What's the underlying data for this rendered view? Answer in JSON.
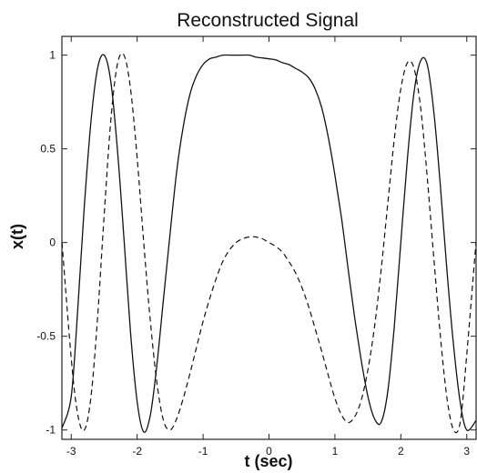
{
  "chart_data": {
    "type": "line",
    "title": "Reconstructed Signal",
    "xlabel": "t (sec)",
    "ylabel": "x(t)",
    "xlim": [
      -3.14159,
      3.14159
    ],
    "ylim": [
      -1.05,
      1.1
    ],
    "x_ticks": [
      -3,
      -2,
      -1,
      0,
      1,
      2,
      3
    ],
    "y_ticks": [
      -1,
      -0.5,
      0,
      0.5,
      1
    ],
    "y_tick_labels": [
      "-1",
      "-0.5",
      "0",
      "0.5",
      "1"
    ],
    "grid": false,
    "series": [
      {
        "style": "solid",
        "color": "#111111",
        "x": [
          -3.14,
          -3.0,
          -2.9,
          -2.8,
          -2.7,
          -2.6,
          -2.5,
          -2.4,
          -2.3,
          -2.2,
          -2.1,
          -2.0,
          -1.9,
          -1.8,
          -1.7,
          -1.6,
          -1.5,
          -1.4,
          -1.3,
          -1.2,
          -1.1,
          -1.0,
          -0.9,
          -0.8,
          -0.7,
          -0.6,
          -0.5,
          -0.4,
          -0.3,
          -0.2,
          -0.1,
          0.0,
          0.1,
          0.2,
          0.3,
          0.4,
          0.5,
          0.6,
          0.7,
          0.8,
          0.9,
          1.0,
          1.1,
          1.2,
          1.3,
          1.4,
          1.5,
          1.6,
          1.7,
          1.8,
          1.9,
          2.0,
          2.1,
          2.2,
          2.3,
          2.4,
          2.5,
          2.6,
          2.7,
          2.8,
          2.9,
          3.0,
          3.14
        ],
        "y": [
          -0.99,
          -0.82,
          -0.35,
          0.2,
          0.65,
          0.93,
          1.0,
          0.86,
          0.5,
          0.02,
          -0.48,
          -0.85,
          -1.01,
          -0.92,
          -0.65,
          -0.3,
          0.05,
          0.38,
          0.62,
          0.79,
          0.89,
          0.95,
          0.98,
          0.99,
          1.0,
          1.0,
          1.0,
          1.0,
          1.0,
          0.99,
          0.985,
          0.98,
          0.975,
          0.96,
          0.95,
          0.93,
          0.91,
          0.88,
          0.82,
          0.72,
          0.56,
          0.36,
          0.13,
          -0.14,
          -0.4,
          -0.63,
          -0.82,
          -0.94,
          -0.96,
          -0.8,
          -0.45,
          0.0,
          0.45,
          0.8,
          0.97,
          0.95,
          0.7,
          0.3,
          -0.15,
          -0.55,
          -0.85,
          -1.0,
          -0.95
        ]
      },
      {
        "style": "dashed",
        "color": "#111111",
        "x": [
          -3.14,
          -3.0,
          -2.9,
          -2.8,
          -2.7,
          -2.6,
          -2.5,
          -2.4,
          -2.3,
          -2.2,
          -2.1,
          -2.0,
          -1.9,
          -1.8,
          -1.7,
          -1.6,
          -1.5,
          -1.4,
          -1.3,
          -1.2,
          -1.1,
          -1.0,
          -0.9,
          -0.8,
          -0.7,
          -0.6,
          -0.5,
          -0.4,
          -0.3,
          -0.2,
          -0.1,
          0.0,
          0.1,
          0.2,
          0.3,
          0.4,
          0.5,
          0.6,
          0.7,
          0.8,
          0.9,
          1.0,
          1.1,
          1.2,
          1.3,
          1.4,
          1.5,
          1.6,
          1.7,
          1.8,
          1.9,
          2.0,
          2.1,
          2.2,
          2.3,
          2.4,
          2.5,
          2.6,
          2.7,
          2.8,
          2.9,
          3.0,
          3.14
        ],
        "y": [
          0.0,
          -0.62,
          -0.92,
          -1.0,
          -0.82,
          -0.4,
          0.15,
          0.65,
          0.95,
          1.0,
          0.82,
          0.45,
          0.0,
          -0.42,
          -0.75,
          -0.95,
          -1.0,
          -0.94,
          -0.83,
          -0.7,
          -0.56,
          -0.42,
          -0.3,
          -0.19,
          -0.1,
          -0.04,
          0.0,
          0.02,
          0.03,
          0.03,
          0.02,
          0.0,
          -0.02,
          -0.05,
          -0.1,
          -0.16,
          -0.24,
          -0.34,
          -0.46,
          -0.58,
          -0.71,
          -0.83,
          -0.92,
          -0.96,
          -0.93,
          -0.84,
          -0.68,
          -0.45,
          -0.15,
          0.2,
          0.55,
          0.82,
          0.96,
          0.93,
          0.72,
          0.35,
          -0.08,
          -0.5,
          -0.83,
          -1.0,
          -0.96,
          -0.6,
          0.0
        ]
      }
    ]
  }
}
